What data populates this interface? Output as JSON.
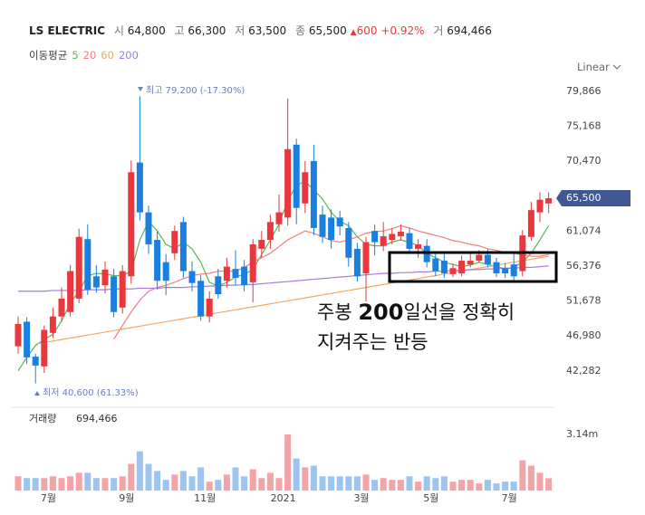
{
  "header": {
    "name": "LS ELECTRIC",
    "open_label": "시",
    "open": "64,800",
    "high_label": "고",
    "high": "66,300",
    "low_label": "저",
    "low": "63,500",
    "close_label": "종",
    "close": "65,500",
    "change": "600",
    "change_pct": "+0.92%",
    "volume_label": "거",
    "volume": "694,466"
  },
  "ma_legend_label": "이동평균",
  "scale_mode": "Linear",
  "volume_title": "거래량",
  "annotation_high": "최고 79,200 (-17.30%)",
  "annotation_low": "최저 40,600 (61.33%)",
  "overlay": {
    "line1_a": "주봉",
    "line1_b": "200",
    "line1_c": "일선을 정확히",
    "line2": "지켜주는 반등"
  },
  "chart_data": {
    "type": "candlestick",
    "categories": [
      null,
      null,
      null,
      null,
      "7월",
      null,
      null,
      null,
      null,
      null,
      null,
      null,
      null,
      "9월",
      null,
      null,
      null,
      null,
      null,
      null,
      null,
      null,
      "11월",
      null,
      null,
      null,
      null,
      null,
      null,
      null,
      null,
      "2021",
      null,
      null,
      null,
      null,
      null,
      null,
      null,
      null,
      "3월",
      null,
      null,
      null,
      null,
      null,
      null,
      null,
      "5월",
      null,
      null,
      null,
      null,
      null,
      null,
      null,
      null,
      "7월",
      null,
      null,
      null,
      null
    ],
    "open": [
      45600,
      48900,
      44200,
      42900,
      47400,
      49600,
      50200,
      52000,
      60000,
      55000,
      53800,
      55000,
      50800,
      55000,
      70300,
      63600,
      59900,
      56900,
      58100,
      62300,
      55700,
      54400,
      49600,
      55000,
      54400,
      56000,
      56300,
      54200,
      58700,
      59900,
      62000,
      62900,
      72700,
      64800,
      70500,
      63300,
      62900,
      62900,
      61500,
      58700,
      55400,
      61100,
      59100,
      59900,
      60400,
      60800,
      58700,
      59100,
      57400,
      57100,
      55300,
      55400,
      56600,
      57100,
      57900,
      56900,
      56100,
      56600,
      55700,
      60300,
      63600,
      64800
    ],
    "high": [
      49600,
      49500,
      44600,
      48400,
      50800,
      53500,
      56500,
      61400,
      62000,
      56500,
      57000,
      56000,
      56500,
      70600,
      79200,
      64500,
      61000,
      58000,
      61800,
      63000,
      57000,
      55200,
      53000,
      56000,
      57500,
      58500,
      57200,
      60000,
      61100,
      63300,
      66000,
      78900,
      73500,
      70500,
      72700,
      64500,
      64000,
      63800,
      62300,
      59500,
      60300,
      62000,
      62300,
      61500,
      62000,
      61500,
      60000,
      60000,
      58000,
      58000,
      56700,
      57800,
      58000,
      58500,
      58600,
      57500,
      56800,
      58100,
      61200,
      65000,
      66300,
      66300
    ],
    "low": [
      44600,
      43200,
      40600,
      42000,
      46700,
      48900,
      49600,
      51400,
      52500,
      52800,
      52700,
      49500,
      50000,
      54000,
      62500,
      58000,
      53200,
      52500,
      57200,
      54800,
      53000,
      49000,
      48800,
      52000,
      53500,
      53800,
      53000,
      51500,
      57500,
      58700,
      61000,
      61800,
      62000,
      63500,
      60500,
      59500,
      58700,
      60500,
      56300,
      54300,
      51600,
      57800,
      58400,
      59300,
      59800,
      58000,
      57500,
      56200,
      55000,
      54800,
      54900,
      55000,
      56200,
      56800,
      56200,
      54900,
      54800,
      54500,
      55000,
      59800,
      62300,
      63500
    ],
    "close": [
      48600,
      44100,
      43000,
      47800,
      49600,
      52000,
      55700,
      60300,
      53200,
      53500,
      55900,
      50200,
      55700,
      69000,
      63600,
      59300,
      54400,
      54400,
      61100,
      55700,
      54100,
      49600,
      52000,
      52600,
      56300,
      54800,
      53800,
      59300,
      59900,
      62300,
      63600,
      72100,
      64200,
      69000,
      61500,
      60300,
      59900,
      61700,
      57500,
      55000,
      59600,
      59600,
      60400,
      60700,
      61000,
      58700,
      59300,
      56900,
      55700,
      55400,
      56100,
      57100,
      57100,
      57900,
      56600,
      55400,
      55400,
      55000,
      60500,
      63900,
      65300,
      65500
    ],
    "up_color": "#e8383d",
    "down_color": "#1b7fe0",
    "up_volume_color": "#f4a3a6",
    "down_volume_color": "#9cc4f0",
    "lines": [
      {
        "name": "5",
        "color": "#56b85a",
        "values": [
          42300,
          44100,
          45700,
          46500,
          47200,
          49000,
          51400,
          53000,
          55100,
          55400,
          55300,
          55100,
          55100,
          55700,
          59900,
          62400,
          61100,
          59300,
          58700,
          59600,
          58700,
          56900,
          54200,
          53700,
          54200,
          54900,
          55300,
          55900,
          57900,
          59900,
          62000,
          65200,
          67200,
          67800,
          66600,
          65400,
          63600,
          62400,
          61800,
          60300,
          59300,
          59100,
          59100,
          59600,
          59900,
          59600,
          59100,
          58100,
          57500,
          56900,
          56600,
          56300,
          56500,
          56900,
          56600,
          56300,
          56000,
          56200,
          56900,
          58100,
          59900,
          61800
        ]
      },
      {
        "name": "20",
        "color": "#f07f82",
        "values": [
          null,
          null,
          null,
          null,
          null,
          null,
          null,
          null,
          null,
          null,
          null,
          46550,
          48400,
          50200,
          51800,
          53000,
          53500,
          53800,
          54200,
          54700,
          55100,
          55300,
          55400,
          55700,
          55700,
          55700,
          56200,
          56900,
          57500,
          58100,
          59000,
          59900,
          60500,
          61100,
          60800,
          60300,
          59800,
          59600,
          59900,
          60300,
          60800,
          61000,
          61100,
          61400,
          61800,
          61500,
          61100,
          60800,
          60500,
          60200,
          59800,
          59600,
          59300,
          59100,
          58700,
          58500,
          58200,
          58100,
          57900,
          57700,
          57700,
          57900
        ]
      },
      {
        "name": "60",
        "color": "#f3a766",
        "values": [
          null,
          null,
          45900,
          46100,
          46300,
          46500,
          46700,
          46900,
          47100,
          47300,
          47500,
          47700,
          47900,
          48100,
          48300,
          48500,
          48700,
          48900,
          49100,
          49300,
          49500,
          49700,
          49900,
          50100,
          50300,
          50500,
          50700,
          50900,
          51100,
          51300,
          51500,
          51700,
          51900,
          52100,
          52300,
          52500,
          52700,
          52900,
          53100,
          53300,
          53500,
          53700,
          53900,
          54100,
          54300,
          54500,
          54700,
          54900,
          55100,
          55300,
          55500,
          55700,
          55900,
          56100,
          56300,
          56500,
          56700,
          56900,
          57100,
          57300,
          57500,
          57700
        ]
      },
      {
        "name": "200",
        "color": "#a57be0",
        "values": [
          53000,
          53000,
          53000,
          53000,
          53100,
          53100,
          53100,
          53100,
          53200,
          53200,
          53200,
          53300,
          53300,
          53300,
          53400,
          53400,
          53400,
          53500,
          53500,
          53500,
          53600,
          53600,
          53700,
          53700,
          53800,
          53800,
          53900,
          53900,
          54000,
          54100,
          54200,
          54300,
          54400,
          54500,
          54600,
          54700,
          54800,
          54900,
          55000,
          55100,
          55200,
          55300,
          55400,
          55400,
          55500,
          55500,
          55600,
          55600,
          55700,
          55700,
          55800,
          55800,
          55900,
          55900,
          56000,
          56000,
          56100,
          56100,
          56200,
          56200,
          56300,
          56400
        ]
      }
    ],
    "ylim": [
      38000,
      81200
    ],
    "yticks": [
      {
        "value": 42282,
        "label": "42,282"
      },
      {
        "value": 46980,
        "label": "46,980"
      },
      {
        "value": 51678,
        "label": "51,678"
      },
      {
        "value": 56376,
        "label": "56,376"
      },
      {
        "value": 61074,
        "label": "61,074"
      },
      {
        "value": 70470,
        "label": "70,470"
      },
      {
        "value": 75168,
        "label": "75,168"
      },
      {
        "value": 79866,
        "label": "79,866"
      }
    ],
    "volume": [
      800000,
      700000,
      700000,
      700000,
      800000,
      700000,
      800000,
      1000000,
      1000000,
      700000,
      700000,
      700000,
      800000,
      1500000,
      2200000,
      1500000,
      1100000,
      600000,
      900000,
      1100000,
      800000,
      1300000,
      500000,
      600000,
      900000,
      1300000,
      800000,
      1200000,
      700000,
      1000000,
      700000,
      3150000,
      1800000,
      1300000,
      1400000,
      800000,
      800000,
      800000,
      800000,
      800000,
      900000,
      600000,
      700000,
      600000,
      600000,
      800000,
      500000,
      800000,
      700000,
      800000,
      500000,
      600000,
      600000,
      400000,
      600000,
      400000,
      500000,
      500000,
      1700000,
      1400000,
      1000000,
      694466
    ],
    "vlim": [
      0,
      3660000
    ],
    "vticks": [
      {
        "value": 3140000,
        "label": "3.14m"
      }
    ],
    "grid": false
  }
}
